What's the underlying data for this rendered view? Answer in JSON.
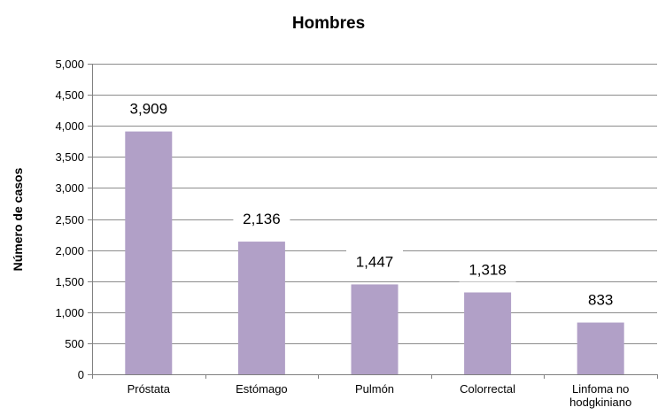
{
  "chart_data": {
    "type": "bar",
    "title": "Hombres",
    "xlabel": "",
    "ylabel": "Número de casos",
    "categories": [
      "Próstata",
      "Estómago",
      "Pulmón",
      "Colorrectal",
      "Linfoma no hodgkiniano"
    ],
    "category_lines": [
      [
        "Próstata"
      ],
      [
        "Estómago"
      ],
      [
        "Pulmón"
      ],
      [
        "Colorrectal"
      ],
      [
        "Linfoma no",
        "hodgkiniano"
      ]
    ],
    "values": [
      3909,
      2136,
      1447,
      1318,
      833
    ],
    "value_labels": [
      "3,909",
      "2,136",
      "1,447",
      "1,318",
      "833"
    ],
    "ylim": [
      0,
      5000
    ],
    "yticks": [
      0,
      500,
      1000,
      1500,
      2000,
      2500,
      3000,
      3500,
      4000,
      4500,
      5000
    ],
    "ytick_labels": [
      "0",
      "500",
      "1,000",
      "1,500",
      "2,000",
      "2,500",
      "3,000",
      "3,500",
      "4,000",
      "4,500",
      "5,000"
    ],
    "grid": true,
    "legend": "none",
    "bar_color": "#b1a0c7"
  }
}
